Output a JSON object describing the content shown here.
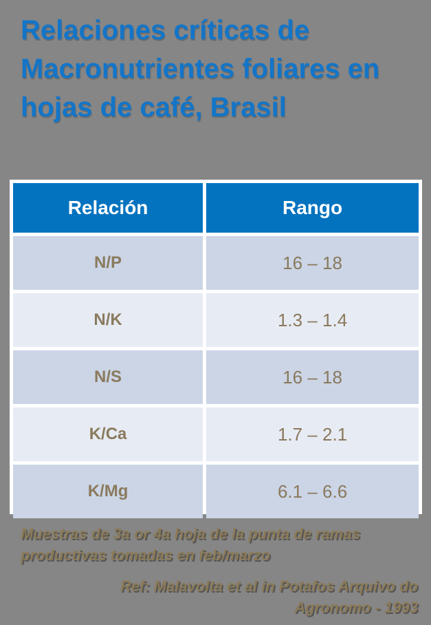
{
  "slide": {
    "title": "Relaciones críticas de Macronutrientes foliares en hojas de café, Brasil",
    "background_color": "#868686",
    "title_color": "#1375C8"
  },
  "table": {
    "header_bg_color": "#0373BF",
    "row_odd_bg_color": "#CBD5E6",
    "row_even_bg_color": "#E7EBF3",
    "cell_text_color": "#8A7A5E",
    "columns": [
      {
        "label": "Relación"
      },
      {
        "label": "Rango"
      }
    ],
    "rows": [
      {
        "relacion": "N/P",
        "rango": "16 – 18"
      },
      {
        "relacion": "N/K",
        "rango": "1.3 – 1.4"
      },
      {
        "relacion": "N/S",
        "rango": "16 – 18"
      },
      {
        "relacion": "K/Ca",
        "rango": "1.7 – 2.1"
      },
      {
        "relacion": "K/Mg",
        "rango": "6.1 – 6.6"
      }
    ]
  },
  "footnotes": {
    "sample_note": "Muestras de 3a or 4a hoja de la punta de ramas productivas tomadas en feb/marzo",
    "reference": "Ref: Malavolta et al in Potafos Arquivo do Agronomo - 1993",
    "text_color": "#8B7A58"
  }
}
